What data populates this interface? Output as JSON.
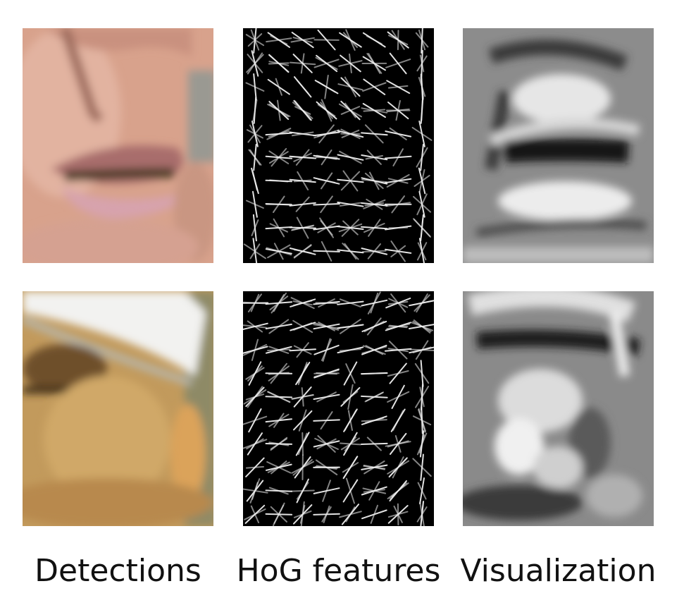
{
  "columns": [
    {
      "label": "Detections"
    },
    {
      "label": "HoG features"
    },
    {
      "label": "Visualization"
    }
  ],
  "rows": [
    {
      "detection": "mouth-crop",
      "hog": "hog-grid",
      "visualization": "hog-inverse"
    },
    {
      "detection": "face-with-cap-crop",
      "hog": "hog-grid",
      "visualization": "hog-inverse"
    }
  ]
}
